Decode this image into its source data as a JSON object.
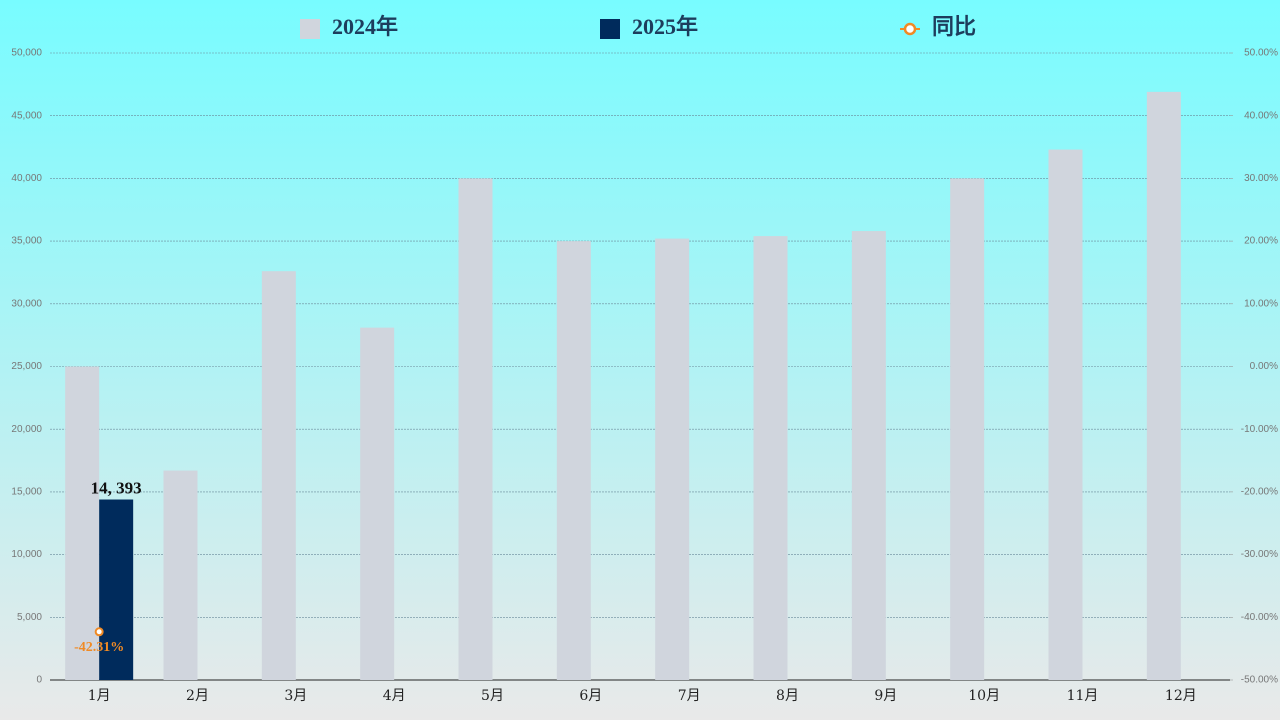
{
  "chart_data": {
    "type": "bar",
    "categories": [
      "1月",
      "2月",
      "3月",
      "4月",
      "5月",
      "6月",
      "7月",
      "8月",
      "9月",
      "10月",
      "11月",
      "12月"
    ],
    "series": [
      {
        "name": "2024年",
        "color": "#d0d5dd",
        "values": [
          25000,
          16700,
          32600,
          28100,
          40000,
          35000,
          35200,
          35400,
          35800,
          40000,
          42300,
          46900
        ]
      },
      {
        "name": "2025年",
        "color": "#002b5c",
        "values": [
          14393,
          null,
          null,
          null,
          null,
          null,
          null,
          null,
          null,
          null,
          null,
          null
        ],
        "value_labels": [
          "14, 393",
          null,
          null,
          null,
          null,
          null,
          null,
          null,
          null,
          null,
          null,
          null
        ]
      },
      {
        "name": "同比",
        "type": "line",
        "axis": "y2",
        "color": "#f08a24",
        "values": [
          -42.31,
          null,
          null,
          null,
          null,
          null,
          null,
          null,
          null,
          null,
          null,
          null
        ],
        "value_labels": [
          "-42.31%",
          null,
          null,
          null,
          null,
          null,
          null,
          null,
          null,
          null,
          null,
          null
        ]
      }
    ],
    "ylim": [
      0,
      50000
    ],
    "yticks": [
      0,
      {
        "value": 5000,
        "label": "5,000"
      },
      {
        "value": 10000,
        "label": "10,000"
      },
      {
        "value": 15000,
        "label": "15,000"
      },
      {
        "value": 20000,
        "label": "20,000"
      },
      {
        "value": 25000,
        "label": "25,000"
      },
      {
        "value": 30000,
        "label": "30,000"
      },
      {
        "value": 35000,
        "label": "35,000"
      },
      {
        "value": 40000,
        "label": "40,000"
      },
      {
        "value": 45000,
        "label": "45,000"
      },
      {
        "value": 50000,
        "label": "50,000"
      }
    ],
    "y2lim": [
      -50,
      50
    ],
    "y2ticks": [
      {
        "value": -50,
        "label": "-50.00%"
      },
      {
        "value": -40,
        "label": "-40.00%"
      },
      {
        "value": -30,
        "label": "-30.00%"
      },
      {
        "value": -20,
        "label": "-20.00%"
      },
      {
        "value": -10,
        "label": "-10.00%"
      },
      {
        "value": 0,
        "label": "0.00%"
      },
      {
        "value": 10,
        "label": "10.00%"
      },
      {
        "value": 20,
        "label": "20.00%"
      },
      {
        "value": 30,
        "label": "30.00%"
      },
      {
        "value": 40,
        "label": "40.00%"
      },
      {
        "value": 50,
        "label": "50.00%"
      }
    ],
    "grid": true,
    "legend": "top"
  }
}
